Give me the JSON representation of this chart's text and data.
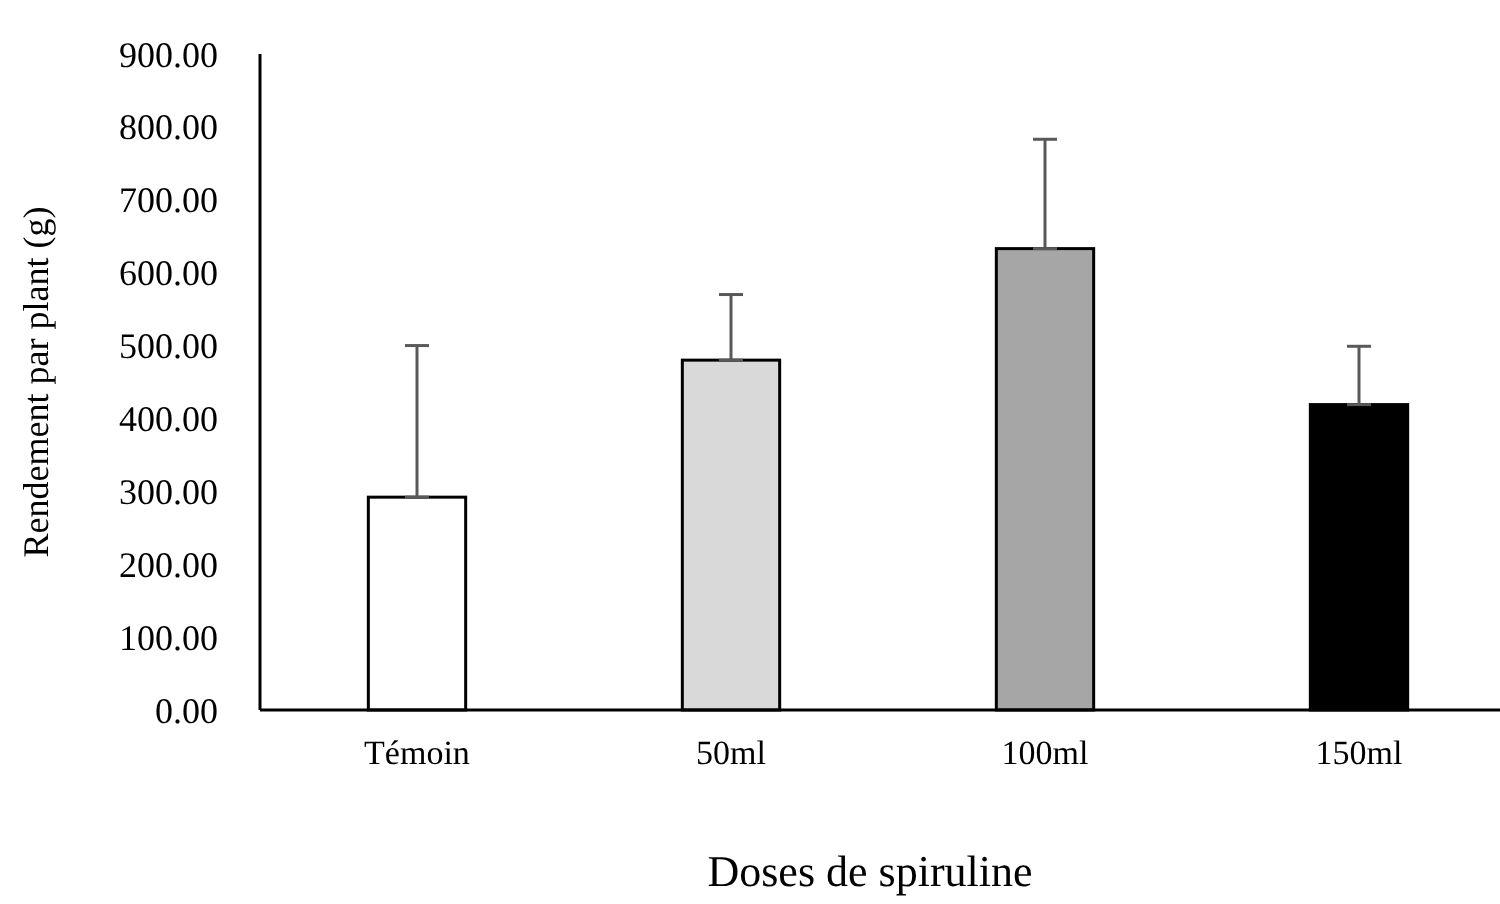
{
  "chart_data": {
    "type": "bar",
    "xlabel": "Doses de spiruline",
    "ylabel": "Rendement par plant (g)",
    "categories": [
      "Témoin",
      "50ml",
      "100ml",
      "150ml"
    ],
    "values": [
      292,
      480,
      633,
      419
    ],
    "colors": [
      "#ffffff",
      "#d9d9d9",
      "#a6a6a6",
      "#000000"
    ],
    "errors": [
      [
        292,
        500
      ],
      [
        480,
        570
      ],
      [
        633,
        783
      ],
      [
        419,
        499
      ]
    ],
    "ylim": [
      0,
      900
    ],
    "yticks": [
      {
        "value": 0,
        "label": "0.00"
      },
      {
        "value": 100,
        "label": "100.00"
      },
      {
        "value": 200,
        "label": "200.00"
      },
      {
        "value": 300,
        "label": "300.00"
      },
      {
        "value": 400,
        "label": "400.00"
      },
      {
        "value": 500,
        "label": "500.00"
      },
      {
        "value": 600,
        "label": "600.00"
      },
      {
        "value": 700,
        "label": "700.00"
      },
      {
        "value": 800,
        "label": "800.00"
      },
      {
        "value": 900,
        "label": "900.00"
      }
    ],
    "grid": false
  }
}
